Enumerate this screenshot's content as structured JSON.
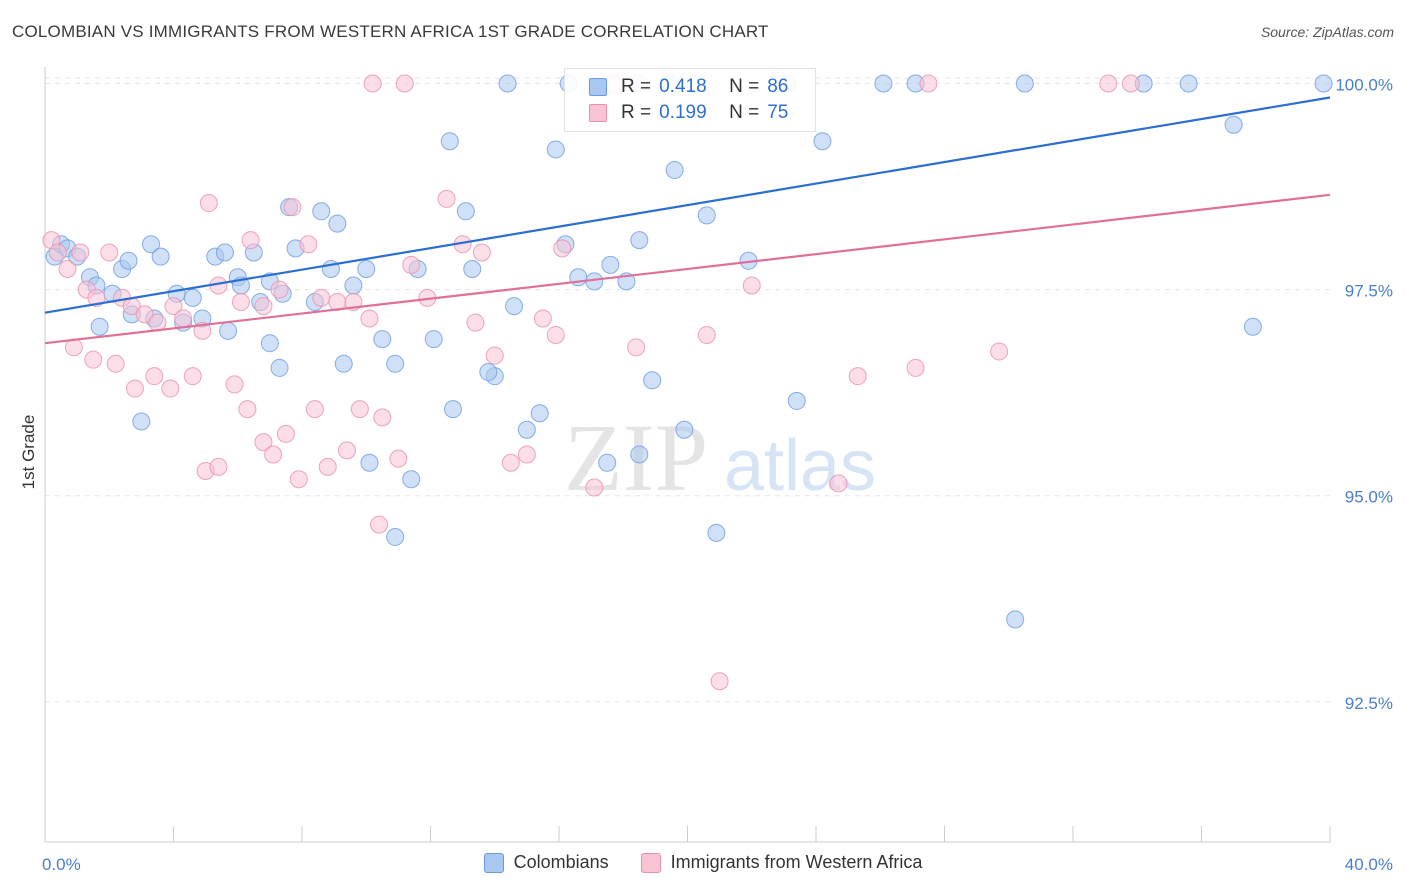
{
  "title": "COLOMBIAN VS IMMIGRANTS FROM WESTERN AFRICA 1ST GRADE CORRELATION CHART",
  "source": "Source: ZipAtlas.com",
  "watermark": {
    "zip": "ZIP",
    "atlas": "atlas"
  },
  "legend": {
    "r_label": "R =",
    "n_label": "N =",
    "rows": [
      {
        "r": "0.418",
        "n": "86",
        "fill": "#a9c8f0",
        "stroke": "#6a9be0"
      },
      {
        "r": "0.199",
        "n": "75",
        "fill": "#f8c3d3",
        "stroke": "#e890ae"
      }
    ]
  },
  "chart_data": {
    "type": "scatter",
    "xlabel": "",
    "ylabel": "1st Grade",
    "xlim": [
      0.0,
      40.0
    ],
    "ylim": [
      90.8,
      100.2
    ],
    "x_tick_labels": [
      "0.0%",
      "40.0%"
    ],
    "y_ticks": [
      {
        "value": 100.0,
        "label": "100.0%"
      },
      {
        "value": 97.5,
        "label": "97.5%"
      },
      {
        "value": 95.0,
        "label": "95.0%"
      },
      {
        "value": 92.5,
        "label": "92.5%"
      }
    ],
    "grid": true,
    "series": [
      {
        "name": "Colombians",
        "color": "#6a9be0",
        "fill": "#a9c8f0",
        "trend_color": "#2a6fd0",
        "trend": {
          "x": [
            0.0,
            40.0
          ],
          "y": [
            97.22,
            99.83
          ]
        },
        "points": [
          [
            0.3,
            97.9
          ],
          [
            0.5,
            98.05
          ],
          [
            0.7,
            98.0
          ],
          [
            1.0,
            97.9
          ],
          [
            1.4,
            97.65
          ],
          [
            1.6,
            97.55
          ],
          [
            2.1,
            97.45
          ],
          [
            2.4,
            97.75
          ],
          [
            2.6,
            97.85
          ],
          [
            3.3,
            98.05
          ],
          [
            3.6,
            97.9
          ],
          [
            4.1,
            97.45
          ],
          [
            4.6,
            97.4
          ],
          [
            4.9,
            97.15
          ],
          [
            5.3,
            97.9
          ],
          [
            5.6,
            97.95
          ],
          [
            6.0,
            97.65
          ],
          [
            6.5,
            97.95
          ],
          [
            7.0,
            97.6
          ],
          [
            7.4,
            97.45
          ],
          [
            7.6,
            98.5
          ],
          [
            7.8,
            98.0
          ],
          [
            8.6,
            98.45
          ],
          [
            8.9,
            97.75
          ],
          [
            9.1,
            98.3
          ],
          [
            9.6,
            97.55
          ],
          [
            10.0,
            97.75
          ],
          [
            10.5,
            96.9
          ],
          [
            10.9,
            96.6
          ],
          [
            11.6,
            97.75
          ],
          [
            12.1,
            96.9
          ],
          [
            12.6,
            99.3
          ],
          [
            13.1,
            98.45
          ],
          [
            13.3,
            97.75
          ],
          [
            14.0,
            96.45
          ],
          [
            14.6,
            97.3
          ],
          [
            15.0,
            95.8
          ],
          [
            15.9,
            99.2
          ],
          [
            16.2,
            98.05
          ],
          [
            16.6,
            97.65
          ],
          [
            17.1,
            97.6
          ],
          [
            17.6,
            97.8
          ],
          [
            18.1,
            97.6
          ],
          [
            18.5,
            98.1
          ],
          [
            18.9,
            96.4
          ],
          [
            19.6,
            98.95
          ],
          [
            20.6,
            98.4
          ],
          [
            21.9,
            97.85
          ],
          [
            23.4,
            96.15
          ],
          [
            30.2,
            93.5
          ],
          [
            37.6,
            97.05
          ],
          [
            39.8,
            100.0
          ],
          [
            1.7,
            97.05
          ],
          [
            2.7,
            97.2
          ],
          [
            3.4,
            97.15
          ],
          [
            4.3,
            97.1
          ],
          [
            5.7,
            97.0
          ],
          [
            6.1,
            97.55
          ],
          [
            6.7,
            97.35
          ],
          [
            7.0,
            96.85
          ],
          [
            7.3,
            96.55
          ],
          [
            8.4,
            97.35
          ],
          [
            9.3,
            96.6
          ],
          [
            10.1,
            95.4
          ],
          [
            11.4,
            95.2
          ],
          [
            12.7,
            96.05
          ],
          [
            13.8,
            96.5
          ],
          [
            15.4,
            96.0
          ],
          [
            17.5,
            95.4
          ],
          [
            18.5,
            95.5
          ],
          [
            19.9,
            95.8
          ],
          [
            3.0,
            95.9
          ],
          [
            10.9,
            94.5
          ],
          [
            20.9,
            94.55
          ],
          [
            14.4,
            100.0
          ],
          [
            16.3,
            100.0
          ],
          [
            18.5,
            100.0
          ],
          [
            19.5,
            100.0
          ],
          [
            23.1,
            100.0
          ],
          [
            26.1,
            100.0
          ],
          [
            27.1,
            100.0
          ],
          [
            30.5,
            100.0
          ],
          [
            34.2,
            100.0
          ],
          [
            35.6,
            100.0
          ],
          [
            24.2,
            99.3
          ],
          [
            37.0,
            99.5
          ]
        ]
      },
      {
        "name": "Immigrants from Western Africa",
        "color": "#e890ae",
        "fill": "#f8c3d3",
        "trend_color": "#e0709a",
        "trend": {
          "x": [
            0.0,
            40.0
          ],
          "y": [
            96.85,
            98.65
          ]
        },
        "points": [
          [
            0.2,
            98.1
          ],
          [
            0.4,
            97.95
          ],
          [
            0.7,
            97.75
          ],
          [
            1.1,
            97.95
          ],
          [
            1.3,
            97.5
          ],
          [
            1.6,
            97.4
          ],
          [
            2.0,
            97.95
          ],
          [
            2.4,
            97.4
          ],
          [
            2.7,
            97.3
          ],
          [
            3.1,
            97.2
          ],
          [
            3.5,
            97.1
          ],
          [
            4.0,
            97.3
          ],
          [
            4.3,
            97.15
          ],
          [
            4.9,
            97.0
          ],
          [
            5.1,
            98.55
          ],
          [
            5.4,
            97.55
          ],
          [
            6.1,
            97.35
          ],
          [
            6.4,
            98.1
          ],
          [
            6.8,
            97.3
          ],
          [
            7.3,
            97.5
          ],
          [
            7.7,
            98.5
          ],
          [
            8.2,
            98.05
          ],
          [
            8.6,
            97.4
          ],
          [
            9.1,
            97.35
          ],
          [
            9.6,
            97.35
          ],
          [
            10.1,
            97.15
          ],
          [
            10.5,
            95.95
          ],
          [
            11.0,
            95.45
          ],
          [
            11.4,
            97.8
          ],
          [
            11.9,
            97.4
          ],
          [
            12.5,
            98.6
          ],
          [
            13.0,
            98.05
          ],
          [
            13.4,
            97.1
          ],
          [
            14.0,
            96.7
          ],
          [
            14.5,
            95.4
          ],
          [
            15.0,
            95.5
          ],
          [
            15.5,
            97.15
          ],
          [
            15.9,
            96.95
          ],
          [
            17.1,
            95.1
          ],
          [
            18.4,
            96.8
          ],
          [
            20.6,
            96.95
          ],
          [
            22.0,
            97.55
          ],
          [
            25.3,
            96.45
          ],
          [
            27.1,
            96.55
          ],
          [
            29.7,
            96.75
          ],
          [
            0.9,
            96.8
          ],
          [
            1.5,
            96.65
          ],
          [
            2.2,
            96.6
          ],
          [
            2.8,
            96.3
          ],
          [
            3.4,
            96.45
          ],
          [
            3.9,
            96.3
          ],
          [
            4.6,
            96.45
          ],
          [
            5.0,
            95.3
          ],
          [
            5.4,
            95.35
          ],
          [
            5.9,
            96.35
          ],
          [
            6.3,
            96.05
          ],
          [
            6.8,
            95.65
          ],
          [
            7.1,
            95.5
          ],
          [
            7.5,
            95.75
          ],
          [
            7.9,
            95.2
          ],
          [
            8.4,
            96.05
          ],
          [
            8.8,
            95.35
          ],
          [
            9.4,
            95.55
          ],
          [
            9.8,
            96.05
          ],
          [
            10.4,
            94.65
          ],
          [
            13.6,
            97.95
          ],
          [
            16.1,
            98.0
          ],
          [
            21.0,
            92.75
          ],
          [
            24.7,
            95.15
          ],
          [
            33.8,
            100.0
          ],
          [
            33.1,
            100.0
          ],
          [
            10.2,
            100.0
          ],
          [
            11.2,
            100.0
          ],
          [
            17.7,
            100.0
          ],
          [
            27.5,
            100.0
          ]
        ]
      }
    ]
  }
}
